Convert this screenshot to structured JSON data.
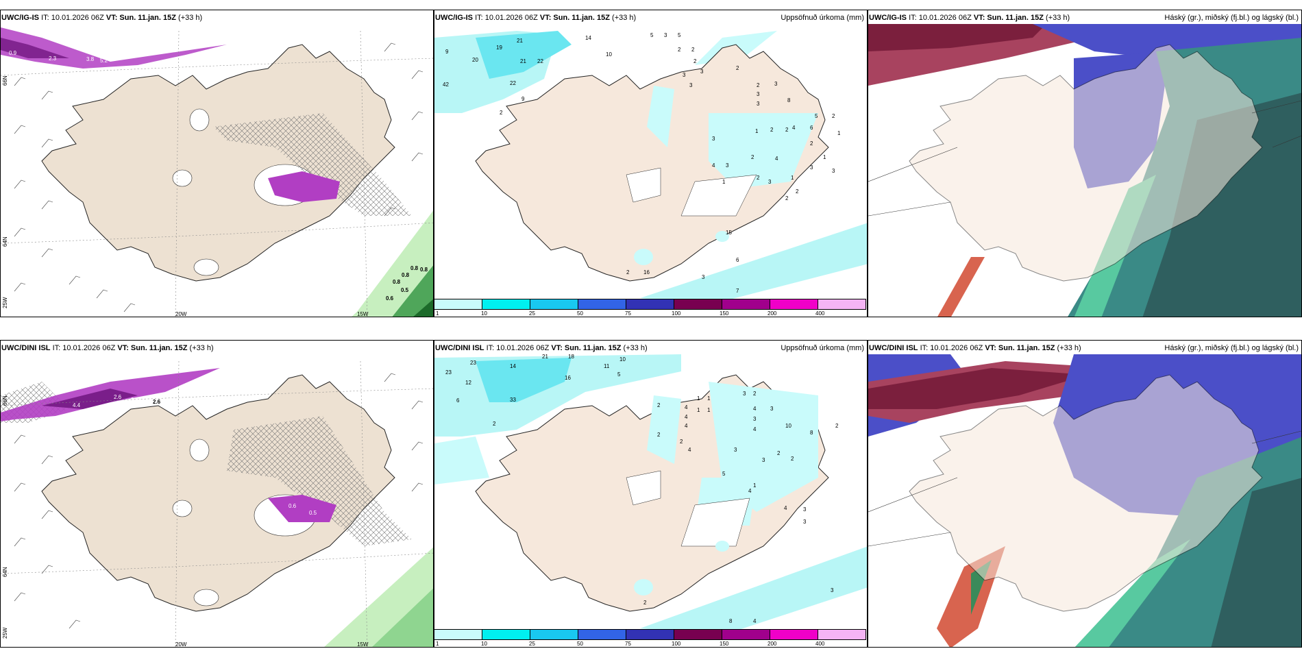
{
  "panels": {
    "p1": {
      "model": "UWC/IG-IS",
      "init": "IT: 10.01.2026 06Z",
      "vt_label": "VT:",
      "vt": "Sun. 11.jan. 15Z",
      "lead": "(+33 h)"
    },
    "p2": {
      "model": "UWC/IG-IS",
      "init": "IT: 10.01.2026 06Z",
      "vt_label": "VT:",
      "vt": "Sun. 11.jan. 15Z",
      "lead": "(+33 h)",
      "title": "Uppsöfnuð úrkoma (mm)"
    },
    "p3": {
      "model": "UWC/IG-IS",
      "init": "IT: 10.01.2026 06Z",
      "vt_label": "VT:",
      "vt": "Sun. 11.jan. 15Z",
      "lead": "(+33 h)",
      "title": "Háský (gr.), miðský (fj.bl.) og lágský (bl.)"
    },
    "p4": {
      "model": "UWC/DINI ISL",
      "init": "IT: 10.01.2026 06Z",
      "vt_label": "VT:",
      "vt": "Sun. 11.jan. 15Z",
      "lead": "(+33 h)"
    },
    "p5": {
      "model": "UWC/DINI ISL",
      "init": "IT: 10.01.2026 06Z",
      "vt_label": "VT:",
      "vt": "Sun. 11.jan. 15Z",
      "lead": "(+33 h)",
      "title": "Uppsöfnuð úrkoma (mm)"
    },
    "p6": {
      "model": "UWC/DINI ISL",
      "init": "IT: 10.01.2026 06Z",
      "vt_label": "VT:",
      "vt": "Sun. 11.jan. 15Z",
      "lead": "(+33 h)",
      "title": "Háský (gr.), miðský (fj.bl.) og lágský (bl.)"
    }
  },
  "axis": {
    "lon20": "20W",
    "lon15": "15W",
    "lon25": "25W",
    "lat66": "66N",
    "lat64": "64N"
  },
  "colorbar": {
    "ticks": [
      "1",
      "10",
      "25",
      "50",
      "75",
      "100",
      "150",
      "200",
      "400"
    ],
    "colors": [
      "#c9fbfb",
      "#00f0f0",
      "#19c8f0",
      "#3264e6",
      "#3232b4",
      "#780050",
      "#a0008c",
      "#f000c8",
      "#f5b4f5",
      ""
    ]
  },
  "top_numbers": {
    "precip": [
      "9",
      "19",
      "20",
      "42",
      "2",
      "22",
      "21",
      "21",
      "22",
      "9",
      "14",
      "10",
      "5",
      "3",
      "5",
      "2",
      "2",
      "2",
      "3",
      "3",
      "3",
      "2",
      "2",
      "3",
      "3",
      "3",
      "8",
      "5",
      "2",
      "4",
      "3",
      "1",
      "2",
      "2",
      "6",
      "1",
      "2",
      "4",
      "4",
      "3",
      "2",
      "2",
      "1",
      "3",
      "1",
      "2",
      "3",
      "1",
      "3",
      "2",
      "15",
      "16",
      "2",
      "3",
      "6",
      "7"
    ],
    "rain_overlay": [
      "0.9",
      "2.3",
      "3.8",
      "5.2",
      "0.8",
      "0.8",
      "0.8",
      "0.5",
      "0.8",
      "0.6"
    ]
  },
  "bottom_numbers": {
    "precip": [
      "23",
      "23",
      "12",
      "14",
      "21",
      "18",
      "11",
      "10",
      "16",
      "5",
      "6",
      "33",
      "2",
      "2",
      "4",
      "4",
      "4",
      "4",
      "2",
      "2",
      "1",
      "1",
      "1",
      "1",
      "3",
      "4",
      "2",
      "3",
      "3",
      "4",
      "10",
      "8",
      "2",
      "3",
      "5",
      "1",
      "3",
      "2",
      "2",
      "4",
      "4",
      "3",
      "3",
      "8",
      "4",
      "3",
      "2"
    ],
    "rain_overlay": [
      "4.4",
      "2.6",
      "2.6",
      "2.6",
      "0.6",
      "0.5"
    ]
  }
}
